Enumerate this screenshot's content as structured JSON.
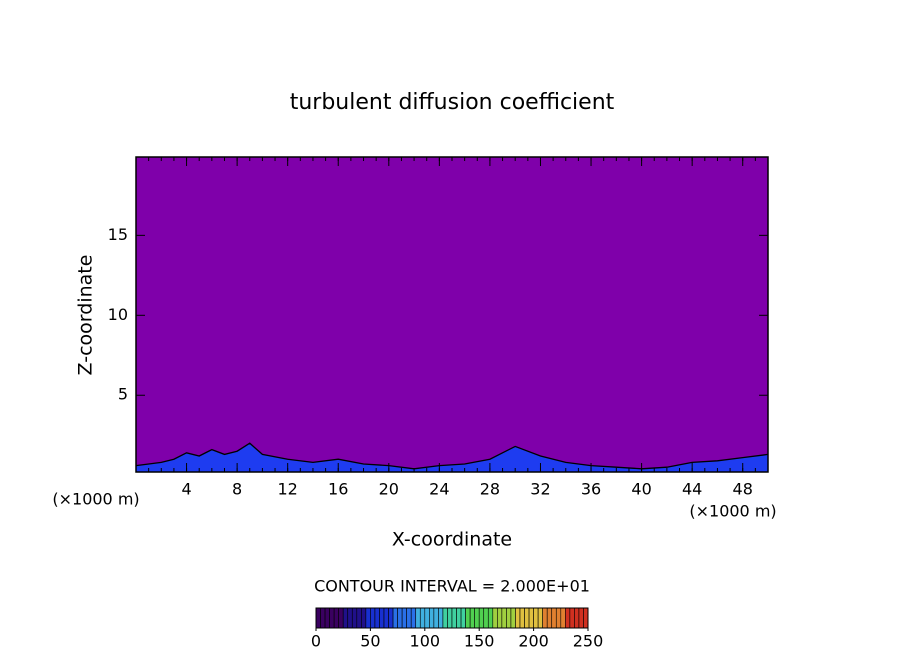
{
  "chart_data": {
    "type": "contour",
    "title": "turbulent diffusion coefficient",
    "x_label": "X-coordinate",
    "y_label": "Z-coordinate",
    "x_unit": "(×1000 m)",
    "xlim": [
      0,
      50
    ],
    "xticks": [
      4,
      8,
      12,
      16,
      20,
      24,
      28,
      32,
      36,
      40,
      44,
      48
    ],
    "ylim": [
      0.2,
      19.9
    ],
    "yticks": [
      5,
      10,
      15
    ],
    "background_color": "#7f00aa",
    "layer_color": "#1e3cf0",
    "contour_x": [
      0,
      2,
      3,
      4,
      5,
      6,
      7,
      8,
      9,
      10,
      12,
      14,
      16,
      18,
      20,
      22,
      24,
      26,
      28,
      30,
      32,
      34,
      36,
      38,
      40,
      42,
      44,
      46,
      48,
      50
    ],
    "contour_z": [
      0.6,
      0.8,
      1.0,
      1.4,
      1.2,
      1.6,
      1.3,
      1.5,
      2.0,
      1.3,
      1.0,
      0.8,
      1.0,
      0.7,
      0.6,
      0.4,
      0.6,
      0.7,
      1.0,
      1.8,
      1.2,
      0.8,
      0.6,
      0.5,
      0.4,
      0.5,
      0.8,
      0.9,
      1.1,
      1.3
    ],
    "contour_interval_text": "CONTOUR INTERVAL = 2.000E+01",
    "colorbar_lim": [
      0,
      250
    ],
    "colorbar_ticks": [
      0,
      50,
      100,
      150,
      200,
      250
    ],
    "colormap": [
      "#3a0060",
      "#20108a",
      "#1830d0",
      "#2a70e8",
      "#40b0e0",
      "#40d0a0",
      "#50d050",
      "#a0d040",
      "#e0c040",
      "#e08030",
      "#d03020"
    ]
  }
}
